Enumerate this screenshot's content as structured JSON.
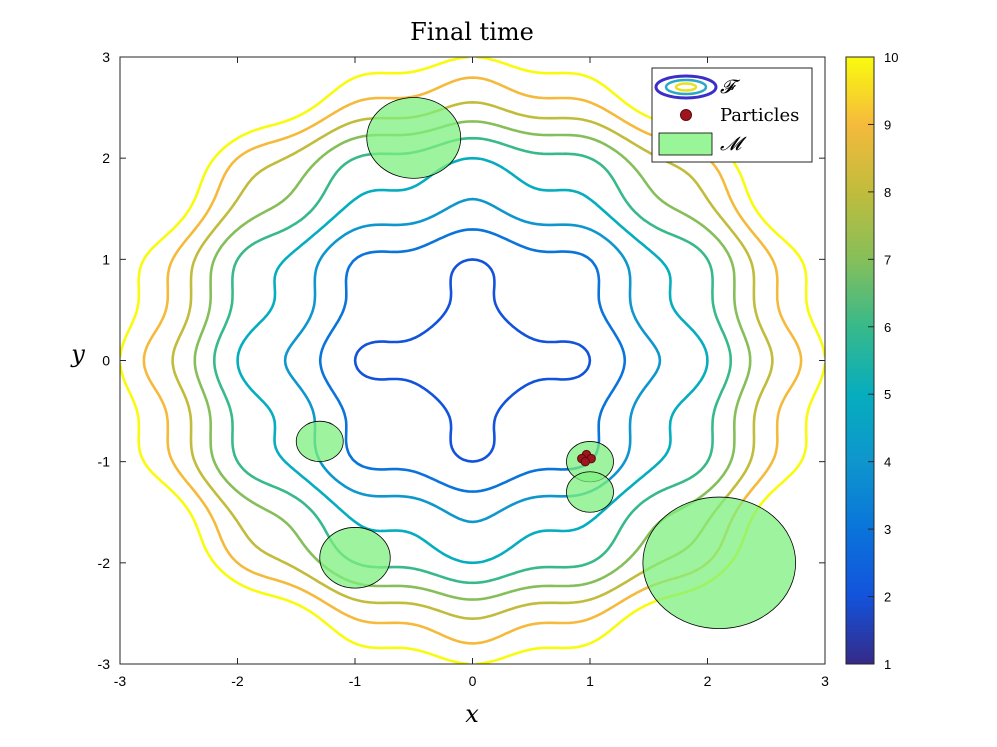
{
  "chart_data": [
    {
      "type": "contour",
      "title": "Final time",
      "xlabel": "x",
      "ylabel": "y",
      "xlim": [
        -3,
        3
      ],
      "ylim": [
        -3,
        3
      ],
      "xticks": [
        "-3",
        "-2",
        "-1",
        "0",
        "1",
        "2",
        "3"
      ],
      "yticks": [
        "3",
        "2",
        "1",
        "0",
        "-1",
        "-2",
        "-3"
      ],
      "grid": false,
      "legend": {
        "placement": "top-right",
        "entries": [
          {
            "label": "𝓕",
            "kind": "contour-lines"
          },
          {
            "label": "Particles",
            "kind": "marker"
          },
          {
            "label": "𝓜",
            "kind": "filled-region"
          }
        ]
      },
      "contour_levels": [
        1,
        2,
        3,
        4,
        5,
        6,
        7,
        8,
        9,
        10
      ],
      "colormap": "parula",
      "colors": {
        "particles": "#a0141e",
        "region_fill": "#7df07d",
        "region_edge": "#000000"
      },
      "regions": [
        {
          "x": -0.5,
          "y": 2.2,
          "r": 0.4
        },
        {
          "x": -1.3,
          "y": -0.8,
          "r": 0.2
        },
        {
          "x": -1.0,
          "y": -1.95,
          "r": 0.3
        },
        {
          "x": 1.0,
          "y": -1.0,
          "r": 0.2
        },
        {
          "x": 1.0,
          "y": -1.3,
          "r": 0.2
        },
        {
          "x": 2.1,
          "y": -2.0,
          "r": 0.65
        }
      ],
      "particles": [
        {
          "x": 0.97,
          "y": -0.93
        },
        {
          "x": 0.93,
          "y": -0.97
        },
        {
          "x": 1.01,
          "y": -0.97
        },
        {
          "x": 0.96,
          "y": -1.0
        }
      ]
    },
    {
      "type": "colorbar",
      "range": [
        1,
        10
      ],
      "ticks": [
        "10",
        "9",
        "8",
        "7",
        "6",
        "5",
        "4",
        "3",
        "2",
        "1"
      ]
    }
  ]
}
